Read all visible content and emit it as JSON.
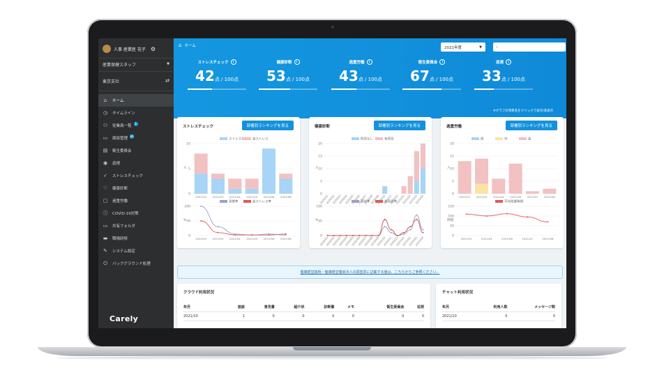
{
  "sidebar": {
    "user_name": "人事 産業医 花子",
    "role": "産業保健スタッフ",
    "office": "東京支社",
    "items": [
      {
        "icon": "home-icon",
        "glyph": "⌂",
        "label": "ホーム",
        "active": true
      },
      {
        "icon": "clock-icon",
        "glyph": "◷",
        "label": "タイムライン"
      },
      {
        "icon": "people-icon",
        "glyph": "⚇",
        "label": "従業員一覧",
        "badge": "1"
      },
      {
        "icon": "chat-icon",
        "glyph": "▭",
        "label": "面談管理",
        "badge": "10"
      },
      {
        "icon": "document-icon",
        "glyph": "▤",
        "label": "衛生委員会"
      },
      {
        "icon": "eye-icon",
        "glyph": "◉",
        "label": "巡視"
      },
      {
        "icon": "check-icon",
        "glyph": "✓",
        "label": "ストレスチェック"
      },
      {
        "icon": "heart-icon",
        "glyph": "♡",
        "label": "健康診断"
      },
      {
        "icon": "briefcase-icon",
        "glyph": "▢",
        "label": "過重労働"
      },
      {
        "icon": "alert-icon",
        "glyph": "ⓘ",
        "label": "COVID-19対策"
      },
      {
        "icon": "folder-icon",
        "glyph": "▭",
        "label": "共有フォルダ"
      },
      {
        "icon": "video-icon",
        "glyph": "▬",
        "label": "職場研修"
      },
      {
        "icon": "wrench-icon",
        "glyph": "✎",
        "label": "システム設定"
      },
      {
        "icon": "power-icon",
        "glyph": "⏻",
        "label": "バックグラウンド処理"
      }
    ],
    "logo": "Carely"
  },
  "header": {
    "breadcrumb": "ホーム",
    "year": "2021年度",
    "search_placeholder": "",
    "note": "※グラフの項目名をクリックで表示/非表示"
  },
  "metrics": [
    {
      "title": "ストレスチェック",
      "value": "42",
      "unit": "点 / 100点",
      "score": 42
    },
    {
      "title": "健康診断",
      "value": "53",
      "unit": "点 / 100点",
      "score": 53
    },
    {
      "title": "過重労働",
      "value": "43",
      "unit": "点 / 100点",
      "score": 43
    },
    {
      "title": "衛生委員会",
      "value": "67",
      "unit": "点 / 100点",
      "score": 67
    },
    {
      "title": "巡視",
      "value": "33",
      "unit": "点 / 100点",
      "score": 33
    }
  ],
  "cards": [
    {
      "title": "ストレスチェック",
      "button": "部署別ランキングを見る"
    },
    {
      "title": "健康診断",
      "button": "部署別ランキングを見る"
    },
    {
      "title": "過重労働",
      "button": "部署別ランキングを見る"
    }
  ],
  "colors": {
    "accent": "#1497e0",
    "blue": "#a8d4f5",
    "pink": "#f2c1c1",
    "yellow": "#fbe3a6",
    "red": "#e05a5a",
    "purple": "#9aa0c8"
  },
  "chart_data": [
    {
      "type": "bar",
      "stacked": true,
      "legend": [
        "ストレスなし",
        "高ストレス"
      ],
      "categories": [
        "2021/02",
        "2021/03",
        "2021/04",
        "2021/05",
        "2021/06",
        "2021/08"
      ],
      "series": [
        {
          "name": "ストレスなし",
          "values": [
            4,
            3,
            1,
            1,
            9,
            3
          ]
        },
        {
          "name": "高ストレス",
          "values": [
            4,
            1,
            2,
            2,
            0,
            1
          ]
        }
      ],
      "ylim": [
        0,
        10
      ],
      "yticks": [
        0,
        5,
        10
      ],
      "ylabel": "人"
    },
    {
      "type": "line",
      "legend": [
        "受検率",
        "高ストレス率"
      ],
      "categories": [
        "2021/02",
        "2021/03",
        "2021/04",
        "2021/05",
        "2021/06",
        "2021/08"
      ],
      "series": [
        {
          "name": "受検率",
          "values": [
            100,
            30,
            5,
            2,
            5,
            2
          ]
        },
        {
          "name": "高ストレス率",
          "values": [
            50,
            10,
            2,
            2,
            2,
            5
          ]
        }
      ],
      "ylim": [
        0,
        100
      ],
      "yticks": [
        0,
        50,
        100
      ],
      "ylabel": "%"
    },
    {
      "type": "bar",
      "stacked": true,
      "legend": [
        "所見なし",
        "有所見"
      ],
      "categories": [
        "2020/01",
        "2020/02",
        "2020/03",
        "2020/04",
        "2020/05",
        "2020/06",
        "2020/07",
        "2020/08",
        "2020/09",
        "2020/10",
        "2020/11",
        "2020/12",
        "2021/01",
        "2021/02",
        "2021/03",
        "2021/04"
      ],
      "series": [
        {
          "name": "所見なし",
          "values": [
            0,
            0,
            0,
            0,
            0,
            0,
            0,
            0,
            0,
            3,
            0,
            0,
            0,
            0,
            5,
            10
          ]
        },
        {
          "name": "有所見",
          "values": [
            0,
            0,
            0,
            0,
            0,
            0,
            0,
            0,
            0,
            0,
            0,
            0,
            3,
            7,
            12,
            10
          ]
        }
      ],
      "ylim": [
        0,
        20
      ],
      "yticks": [
        0,
        5,
        10,
        15,
        20
      ],
      "ylabel": "人"
    },
    {
      "type": "line",
      "legend": [
        "受診率",
        "有所見率"
      ],
      "categories": [
        "2020/01",
        "2020/02",
        "2020/03",
        "2020/04",
        "2020/05",
        "2020/06",
        "2020/07",
        "2020/08",
        "2020/09",
        "2020/10",
        "2020/11",
        "2020/12",
        "2021/01",
        "2021/02",
        "2021/03",
        "2021/04"
      ],
      "series": [
        {
          "name": "受診率",
          "values": [
            0,
            0,
            0,
            0,
            0,
            0,
            0,
            0,
            0,
            30,
            10,
            0,
            5,
            20,
            70,
            20
          ]
        },
        {
          "name": "有所見率",
          "values": [
            0,
            0,
            0,
            0,
            0,
            0,
            0,
            0,
            0,
            55,
            20,
            0,
            10,
            30,
            55,
            10
          ]
        }
      ],
      "ylim": [
        0,
        100
      ],
      "yticks": [
        0,
        50,
        100
      ],
      "ylabel": "%"
    },
    {
      "type": "bar",
      "stacked": true,
      "legend": [
        "低",
        "中",
        "高"
      ],
      "categories": [
        "2021/02",
        "2021/03",
        "2021/04",
        "2021/06",
        "2021/07",
        "2021/08"
      ],
      "series": [
        {
          "name": "低",
          "values": [
            0,
            0,
            0,
            0,
            0,
            0
          ]
        },
        {
          "name": "中",
          "values": [
            0,
            4,
            0,
            0,
            0,
            0
          ]
        },
        {
          "name": "高",
          "values": [
            13,
            10,
            6,
            12,
            1,
            2
          ]
        }
      ],
      "ylim": [
        0,
        20
      ],
      "yticks": [
        0,
        5,
        10,
        15,
        20
      ],
      "ylabel": "人"
    },
    {
      "type": "line",
      "legend": [
        "平均残業時間"
      ],
      "categories": [
        "2021/02",
        "2021/04",
        "2021/06",
        "2021/07",
        "2021/08"
      ],
      "series": [
        {
          "name": "平均残業時間",
          "values": [
            110,
            100,
            112,
            95,
            70
          ]
        }
      ],
      "ylim": [
        0,
        150
      ],
      "yticks": [
        0,
        50,
        100,
        150
      ],
      "ylabel": "時間"
    }
  ],
  "banner": "健康経営銘柄・健康経営優良法人の調査票に記載する値は、こちらからご参照ください。",
  "cloud_usage": {
    "title": "クラウド利用状況",
    "headers": [
      "年月",
      "面談",
      "意見書",
      "紹介状",
      "診断書",
      "メモ",
      "衛生委員会",
      "巡視"
    ],
    "rows": [
      [
        "2021/10",
        "1",
        "0",
        "0",
        "0",
        "0",
        "0",
        "0"
      ]
    ]
  },
  "chat_usage": {
    "title": "チャット利用状況",
    "headers": [
      "年月",
      "利用人数",
      "メッセージ数"
    ],
    "rows": [
      [
        "2021/10",
        "0",
        "0"
      ]
    ]
  }
}
